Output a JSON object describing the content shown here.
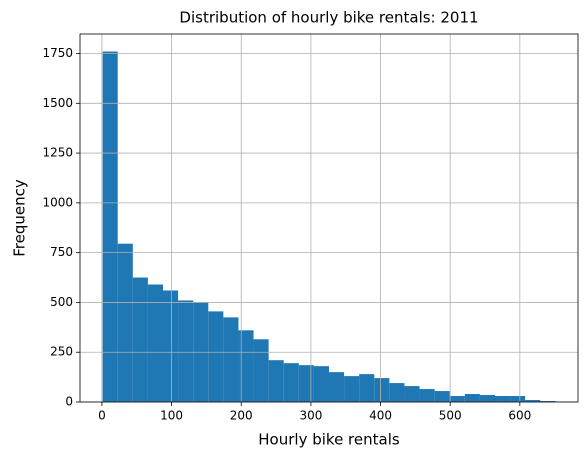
{
  "chart_data": {
    "type": "histogram",
    "title": "Distribution of hourly bike rentals: 2011",
    "x_label": "Hourly bike rentals",
    "y_label": "Frequency",
    "bins": [
      1,
      22.67,
      44.33,
      66,
      87.67,
      109.33,
      131,
      152.67,
      174.33,
      196,
      217.67,
      239.33,
      261,
      282.67,
      304.33,
      326,
      347.67,
      369.33,
      391,
      412.67,
      434.33,
      456,
      477.67,
      499.33,
      521,
      542.67,
      564.33,
      586,
      607.67,
      629.33,
      651
    ],
    "counts": [
      1760,
      795,
      625,
      590,
      560,
      510,
      500,
      455,
      425,
      360,
      315,
      210,
      195,
      185,
      180,
      150,
      130,
      140,
      120,
      95,
      80,
      65,
      55,
      30,
      40,
      35,
      30,
      30,
      10,
      5
    ],
    "color": "#1f77b4",
    "xlim": [
      -31.5,
      683.5
    ],
    "xticks": [
      0,
      100,
      200,
      300,
      400,
      500,
      600
    ],
    "ylim": [
      0,
      1848
    ],
    "yticks": [
      0,
      250,
      500,
      750,
      1000,
      1250,
      1500,
      1750
    ],
    "grid": true
  }
}
